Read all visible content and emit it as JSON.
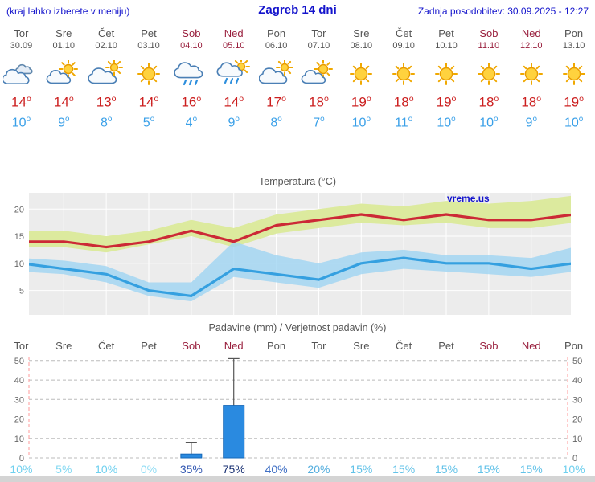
{
  "header": {
    "left_note": "(kraj lahko izberete v meniju)",
    "title": "Zagreb 14 dni",
    "updated": "Zadnja posodobitev: 30.09.2025 - 12:27"
  },
  "watermark": "vreme.us",
  "colors": {
    "link_blue": "#1414cc",
    "weekend_red": "#991f3d",
    "high_temp_red": "#cc1f1f",
    "low_temp_blue": "#3aa0e8",
    "bar_blue": "#2a8ae0",
    "plot_bg_gray": "#ececec"
  },
  "forecast": {
    "days": [
      {
        "name": "Tor",
        "date": "30.09",
        "icon": "cloudy",
        "high": "14",
        "low": "10",
        "weekend": false
      },
      {
        "name": "Sre",
        "date": "01.10",
        "icon": "partly-cloudy",
        "high": "14",
        "low": "9",
        "weekend": false
      },
      {
        "name": "Čet",
        "date": "02.10",
        "icon": "mostly-cloudy",
        "high": "13",
        "low": "8",
        "weekend": false
      },
      {
        "name": "Pet",
        "date": "03.10",
        "icon": "sunny",
        "high": "14",
        "low": "5",
        "weekend": false
      },
      {
        "name": "Sob",
        "date": "04.10",
        "icon": "rain",
        "high": "16",
        "low": "4",
        "weekend": true
      },
      {
        "name": "Ned",
        "date": "05.10",
        "icon": "sun-rain",
        "high": "14",
        "low": "9",
        "weekend": true
      },
      {
        "name": "Pon",
        "date": "06.10",
        "icon": "mostly-cloudy",
        "high": "17",
        "low": "8",
        "weekend": false
      },
      {
        "name": "Tor",
        "date": "07.10",
        "icon": "partly-cloudy",
        "high": "18",
        "low": "7",
        "weekend": false
      },
      {
        "name": "Sre",
        "date": "08.10",
        "icon": "sunny",
        "high": "19",
        "low": "10",
        "weekend": false
      },
      {
        "name": "Čet",
        "date": "09.10",
        "icon": "sunny",
        "high": "18",
        "low": "11",
        "weekend": false
      },
      {
        "name": "Pet",
        "date": "10.10",
        "icon": "sunny",
        "high": "19",
        "low": "10",
        "weekend": false
      },
      {
        "name": "Sob",
        "date": "11.10",
        "icon": "sunny",
        "high": "18",
        "low": "10",
        "weekend": true
      },
      {
        "name": "Ned",
        "date": "12.10",
        "icon": "sunny",
        "high": "18",
        "low": "9",
        "weekend": true
      },
      {
        "name": "Pon",
        "date": "13.10",
        "icon": "sunny",
        "high": "19",
        "low": "10",
        "weekend": false
      }
    ]
  },
  "chart_data": [
    {
      "type": "line",
      "title": "Temperatura (°C)",
      "categories": [
        "Tor",
        "Sre",
        "Čet",
        "Pet",
        "Sob",
        "Ned",
        "Pon",
        "Tor",
        "Sre",
        "Čet",
        "Pet",
        "Sob",
        "Ned",
        "Pon"
      ],
      "ylim": [
        0.5,
        23
      ],
      "yticks": [
        5,
        10,
        15,
        20
      ],
      "grid": true,
      "series": [
        {
          "name": "max-temp",
          "color": "#cc2936",
          "band_color": "#dcea9e",
          "band_opacity": 1,
          "values": [
            14,
            14,
            13,
            14,
            16,
            14,
            17,
            18,
            19,
            18,
            19,
            18,
            18,
            19
          ],
          "band_upper": [
            16,
            16,
            15,
            16,
            18,
            16.5,
            19,
            20,
            21,
            20.5,
            21.5,
            21,
            21.5,
            22.5
          ],
          "band_lower": [
            13,
            13,
            12,
            13.5,
            15,
            13,
            15.5,
            16.5,
            17.5,
            17,
            17.5,
            16.5,
            16.5,
            17.5
          ]
        },
        {
          "name": "min-temp",
          "color": "#35a0e0",
          "band_color": "#9fd4f2",
          "band_opacity": 0.8,
          "values": [
            10,
            9,
            8,
            5,
            4,
            9,
            8,
            7,
            10,
            11,
            10,
            10,
            9,
            10
          ],
          "band_upper": [
            11,
            10.5,
            9.5,
            6.5,
            6.5,
            14,
            11.5,
            10,
            12,
            12.5,
            11.5,
            11.5,
            11,
            13
          ],
          "band_lower": [
            8.5,
            8,
            6.5,
            4,
            3,
            7.5,
            6.5,
            5.5,
            8,
            9,
            8.5,
            8,
            7.5,
            8.5
          ]
        }
      ]
    },
    {
      "type": "bar",
      "title": "Padavine (mm) / Verjetnost padavin (%)",
      "categories": [
        "Tor",
        "Sre",
        "Čet",
        "Pet",
        "Sob",
        "Ned",
        "Pon",
        "Tor",
        "Sre",
        "Čet",
        "Pet",
        "Sob",
        "Ned",
        "Pon"
      ],
      "ylim": [
        0,
        52
      ],
      "yticks": [
        0,
        10,
        20,
        30,
        40,
        50
      ],
      "values": [
        0,
        0,
        0,
        0,
        2,
        27,
        0,
        0,
        0,
        0,
        0,
        0,
        0,
        0
      ],
      "whisker_high": [
        0,
        0,
        0,
        0,
        8,
        51,
        0,
        0,
        0,
        0,
        0,
        0,
        0,
        0
      ],
      "probabilities": [
        {
          "text": "10%",
          "color": "#6fd0ef"
        },
        {
          "text": "5%",
          "color": "#84d9f2"
        },
        {
          "text": "10%",
          "color": "#6fd0ef"
        },
        {
          "text": "0%",
          "color": "#8edcf4"
        },
        {
          "text": "35%",
          "color": "#2f55b0"
        },
        {
          "text": "75%",
          "color": "#172f72"
        },
        {
          "text": "40%",
          "color": "#3f6fc4"
        },
        {
          "text": "20%",
          "color": "#54aede"
        },
        {
          "text": "15%",
          "color": "#62c2e8"
        },
        {
          "text": "15%",
          "color": "#62c2e8"
        },
        {
          "text": "15%",
          "color": "#62c2e8"
        },
        {
          "text": "15%",
          "color": "#62c2e8"
        },
        {
          "text": "15%",
          "color": "#62c2e8"
        },
        {
          "text": "10%",
          "color": "#6fd0ef"
        }
      ]
    }
  ]
}
